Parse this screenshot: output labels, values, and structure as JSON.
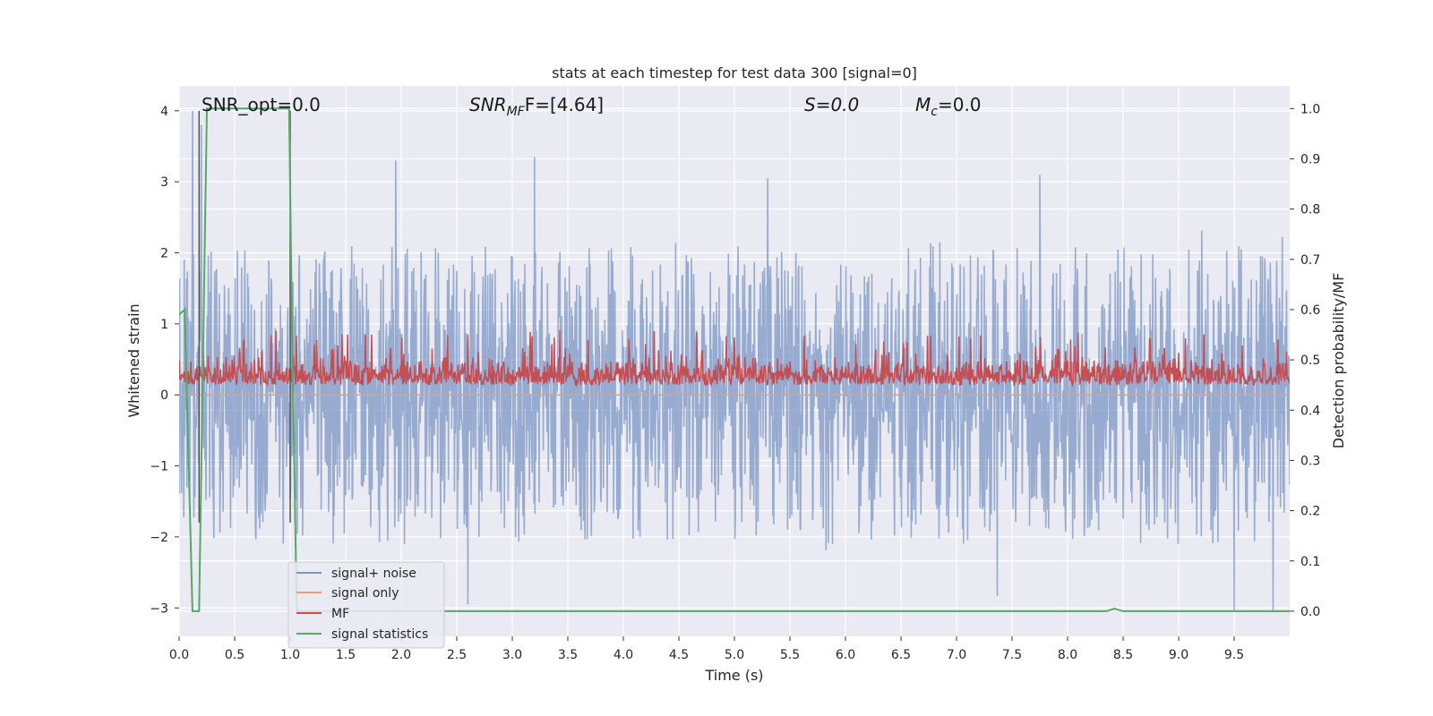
{
  "chart_data": {
    "type": "line",
    "title": "stats at each timestep for test data 300 [signal=0]",
    "xlabel": "Time (s)",
    "ylabel": "Whitened strain",
    "ylabel_right": "Detection probability/MF",
    "xlim": [
      0.0,
      10.0
    ],
    "ylim": [
      -3.4,
      4.35
    ],
    "ylim_right": [
      -0.05,
      1.045
    ],
    "x_ticks": [
      "0.0",
      "0.5",
      "1.0",
      "1.5",
      "2.0",
      "2.5",
      "3.0",
      "3.5",
      "4.0",
      "4.5",
      "5.0",
      "5.5",
      "6.0",
      "6.5",
      "7.0",
      "7.5",
      "8.0",
      "8.5",
      "9.0",
      "9.5"
    ],
    "y_ticks": [
      "4",
      "3",
      "2",
      "1",
      "0",
      "−1",
      "−2",
      "−3"
    ],
    "y_right_ticks": [
      "1.0",
      "0.9",
      "0.8",
      "0.7",
      "0.6",
      "0.5",
      "0.4",
      "0.3",
      "0.2",
      "0.1",
      "0.0"
    ],
    "grid": true,
    "legend_position": "lower-left",
    "annotations": {
      "snr_opt": "SNR_opt=0.0",
      "snr_mf_base": "SNR",
      "snr_mf_sub": "MF",
      "snr_mf_rest": "F=[4.64]",
      "s": "S=0.0",
      "mc_base": "M",
      "mc_sub": "c",
      "mc_rest": "=0.0"
    },
    "series": [
      {
        "name": "signal+ noise",
        "color": "#7b95c6",
        "axis": "left",
        "description": "whitened strain noise, approx. symmetric about 0, typical envelope ±1.8, peaks to ~4.0 near t=0.1 and ~3.3 near t=1.9 and t=3.2",
        "envelope": {
          "upper_typical": 1.8,
          "lower_typical": -1.9,
          "max": 4.0,
          "min": -3.05
        },
        "spikes": [
          {
            "x": 0.12,
            "y": 4.0
          },
          {
            "x": 0.2,
            "y": 3.8
          },
          {
            "x": 1.95,
            "y": 3.3
          },
          {
            "x": 3.2,
            "y": 3.35
          },
          {
            "x": 5.3,
            "y": 3.05
          },
          {
            "x": 7.75,
            "y": 3.1
          },
          {
            "x": 9.5,
            "y": -3.05
          },
          {
            "x": 9.85,
            "y": -3.05
          },
          {
            "x": 2.6,
            "y": -2.95
          }
        ]
      },
      {
        "name": "signal only",
        "color": "#e0a07a",
        "axis": "left",
        "x": [
          0.0,
          10.0
        ],
        "y": [
          0.0,
          0.0
        ]
      },
      {
        "name": "MF",
        "color": "#c44e52",
        "axis": "right",
        "description": "matched-filter output on right axis, fluctuating between ~0.45 and ~0.52, peaks to ~0.56",
        "baseline": 0.45,
        "typical_max": 0.52,
        "max": 0.56
      },
      {
        "name": "signal statistics",
        "color": "#55a868",
        "axis": "right",
        "x": [
          0.0,
          0.05,
          0.12,
          0.18,
          0.25,
          0.99,
          1.02,
          1.06,
          1.1,
          8.35,
          8.42,
          8.5,
          10.0
        ],
        "y": [
          0.59,
          0.6,
          0.0,
          0.0,
          1.0,
          1.0,
          0.5,
          0.0,
          0.0,
          0.0,
          0.005,
          0.0,
          0.0
        ]
      }
    ],
    "vertical_lines": [
      {
        "x": 0.18,
        "color": "#555555"
      },
      {
        "x": 1.0,
        "color": "#555555"
      }
    ]
  }
}
